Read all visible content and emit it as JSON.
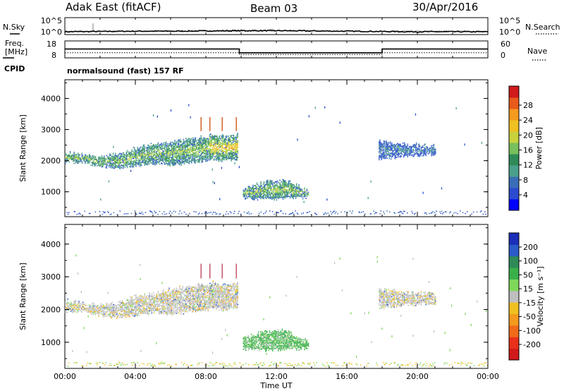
{
  "header": {
    "radar": "Adak East (fitACF)",
    "beam": "Beam 03",
    "date": "30/Apr/2016"
  },
  "top_panels": {
    "nsky_label": "N.Sky",
    "nsky_ticks": [
      "10^5",
      "10^0"
    ],
    "nsearch_label": "N.Search",
    "nsearch_ticks": [
      "10^5",
      "10^0"
    ],
    "freq_label_line1": "Freq.",
    "freq_label_line2": "[MHz]",
    "freq_ticks": [
      "18",
      "8"
    ],
    "nave_label": "Nave",
    "nave_ticks": [
      "60",
      "0"
    ],
    "cpid_label": "CPID",
    "cpid_text": "normalsound (fast) 157 RF"
  },
  "chart_data": [
    {
      "type": "line",
      "panel": "N.Sky / N.Search",
      "x_unit": "hours UT",
      "series": [
        {
          "values_note": "noise level, log scale",
          "x": [
            0,
            2,
            4,
            6,
            8,
            10,
            12,
            14,
            16,
            18,
            20,
            22,
            24
          ],
          "y_log10": [
            0.5,
            0.6,
            0.7,
            0.7,
            0.8,
            0.9,
            0.9,
            0.8,
            0.7,
            0.6,
            0.5,
            0.5,
            0.5
          ]
        }
      ],
      "ylim_log10": [
        0,
        5
      ]
    },
    {
      "type": "line",
      "panel": "Freq. / Nave",
      "series": [
        {
          "name": "Freq.",
          "x": [
            0,
            9.9,
            9.9,
            18,
            18,
            24
          ],
          "y": [
            13.3,
            13.3,
            10.6,
            10.6,
            13.3,
            13.3
          ]
        },
        {
          "name": "Nave",
          "x": [
            0,
            9.9,
            9.9,
            18,
            18,
            24
          ],
          "y": [
            16,
            16,
            8,
            8,
            16,
            16
          ]
        }
      ],
      "ylim_freq": [
        8,
        18
      ],
      "ylim_nave": [
        0,
        60
      ]
    },
    {
      "type": "heatmap",
      "panel": "Power",
      "ylabel": "Slant Range [km]",
      "colorbar_label": "Power [dB]",
      "colorbar_ticks": [
        "4",
        "8",
        "12",
        "16",
        "20",
        "24",
        "28"
      ],
      "colorbar_colors": [
        "#0000ff",
        "#2a4bd0",
        "#3a6db8",
        "#4aa08a",
        "#2e8b57",
        "#77c05c",
        "#c8d23c",
        "#f0c020",
        "#f59a1e",
        "#e85a1a",
        "#d11a1a"
      ],
      "ylim": [
        200,
        4600
      ],
      "y_ticks": [
        "1000",
        "2000",
        "3000",
        "4000"
      ],
      "regions": [
        {
          "t0": 0.0,
          "t1": 8.2,
          "r_low": [
            1950,
            1950,
            1800,
            1750,
            1850,
            1900,
            1850,
            1950,
            2000
          ],
          "r_high": [
            2250,
            2150,
            2100,
            2200,
            2400,
            2500,
            2600,
            2700,
            2750
          ],
          "intensity": "medium"
        },
        {
          "t0": 8.2,
          "t1": 9.8,
          "r_low": [
            2050,
            2000,
            2050
          ],
          "r_high": [
            2800,
            2750,
            2800
          ],
          "intensity": "high"
        },
        {
          "t0": 10.1,
          "t1": 13.8,
          "r_low": [
            800,
            750,
            800,
            800
          ],
          "r_high": [
            1100,
            1300,
            1350,
            1000
          ],
          "intensity": "medium"
        },
        {
          "t0": 17.8,
          "t1": 21.0,
          "r_low": [
            2050,
            2150,
            2200
          ],
          "r_high": [
            2600,
            2500,
            2450
          ],
          "intensity": "low"
        }
      ]
    },
    {
      "type": "heatmap",
      "panel": "Velocity",
      "ylabel": "Slant Range [km]",
      "colorbar_label": "Velocity [m s⁻¹]",
      "colorbar_ticks": [
        "200",
        "100",
        "50",
        "15",
        "-15",
        "-50",
        "-100",
        "-200"
      ],
      "colorbar_colors": [
        "#1a2fb8",
        "#2a5bc8",
        "#2e8b57",
        "#3ab04a",
        "#7fd85a",
        "#bfbfbf",
        "#f0c020",
        "#f59a1e",
        "#f06a1a",
        "#e8301a",
        "#d11a1a"
      ],
      "ylim": [
        200,
        4600
      ],
      "y_ticks": [
        "1000",
        "2000",
        "3000",
        "4000"
      ]
    }
  ],
  "xaxis": {
    "label": "Time UT",
    "ticks": [
      "00:00",
      "04:00",
      "08:00",
      "12:00",
      "16:00",
      "20:00",
      "00:00"
    ]
  }
}
